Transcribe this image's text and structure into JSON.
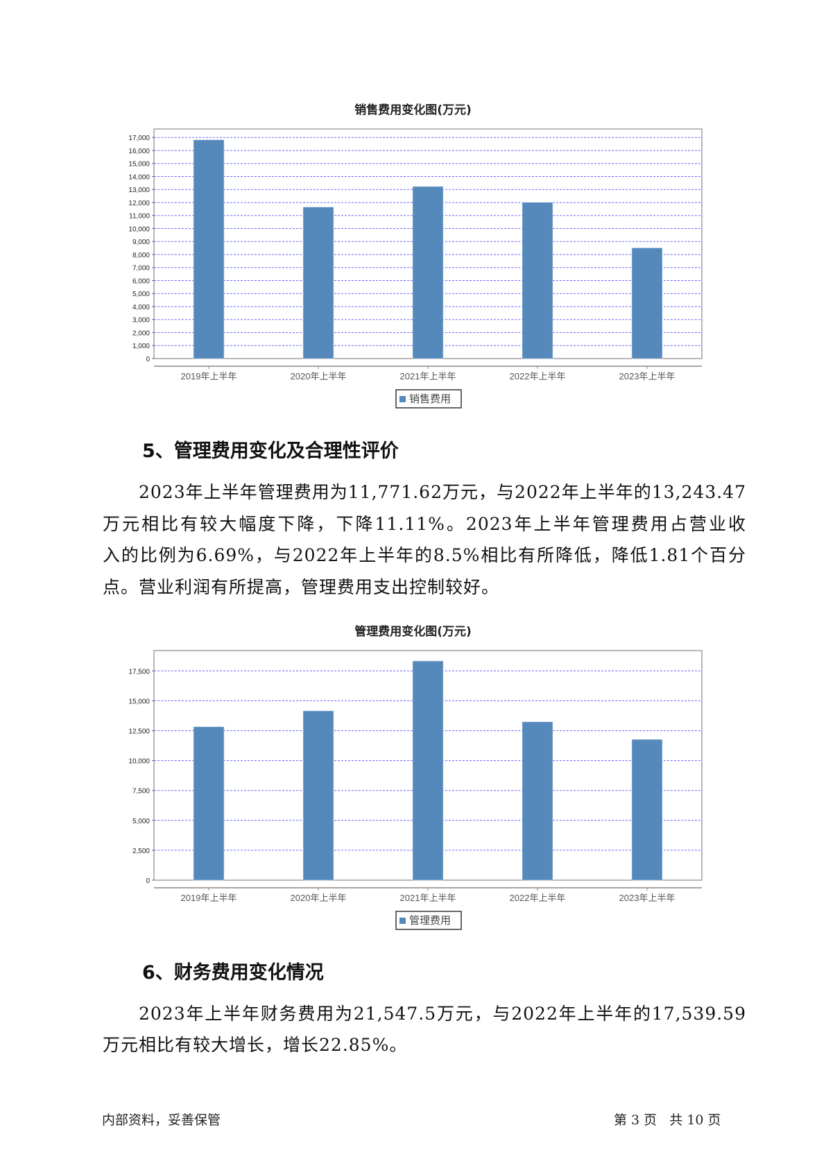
{
  "chart_data": [
    {
      "type": "bar",
      "title": "销售费用变化图(万元)",
      "categories": [
        "2019年上半年",
        "2020年上半年",
        "2021年上半年",
        "2022年上半年",
        "2023年上半年"
      ],
      "series": [
        {
          "name": "销售费用",
          "values": [
            16820,
            11650,
            13230,
            12010,
            8510
          ]
        }
      ],
      "ylim": [
        0,
        17650
      ],
      "yticks": [
        0,
        1000,
        2000,
        3000,
        4000,
        5000,
        6000,
        7000,
        8000,
        9000,
        10000,
        11000,
        12000,
        13000,
        14000,
        15000,
        16000,
        17000
      ],
      "ytick_labels": [
        "0",
        "1,000",
        "2,000",
        "3,000",
        "4,000",
        "5,000",
        "6,000",
        "7,000",
        "8,000",
        "9,000",
        "10,000",
        "11,000",
        "12,000",
        "13,000",
        "14,000",
        "15,000",
        "16,000",
        "17,000"
      ],
      "grid": true,
      "legend": "bottom",
      "bar_color": "#5588bb",
      "grid_color": "#6666ff"
    },
    {
      "type": "bar",
      "title": "管理费用变化图(万元)",
      "categories": [
        "2019年上半年",
        "2020年上半年",
        "2021年上半年",
        "2022年上半年",
        "2023年上半年"
      ],
      "series": [
        {
          "name": "管理费用",
          "values": [
            12830,
            14160,
            18330,
            13243.47,
            11771.62
          ]
        }
      ],
      "ylim": [
        0,
        19200
      ],
      "yticks": [
        0,
        2500,
        5000,
        7500,
        10000,
        12500,
        15000,
        17500
      ],
      "ytick_labels": [
        "0",
        "2,500",
        "5,000",
        "7,500",
        "10,000",
        "12,500",
        "15,000",
        "17,500"
      ],
      "grid": true,
      "legend": "bottom",
      "bar_color": "#5588bb",
      "grid_color": "#6666ff"
    }
  ],
  "section5": {
    "heading": "5、管理费用变化及合理性评价",
    "lines": [
      "2023年上半年管理费用为11,771.62万元，与2022年上半年的13,243.47",
      "万元相比有较大幅度下降，下降11.11%。2023年上半年管理费用占营业收",
      "入的比例为6.69%，与2022年上半年的8.5%相比有所降低，降低1.81个百分",
      "点。营业利润有所提高，管理费用支出控制较好。"
    ]
  },
  "section6": {
    "heading": "6、财务费用变化情况",
    "lines": [
      "2023年上半年财务费用为21,547.5万元，与2022年上半年的17,539.59",
      "万元相比有较大增长，增长22.85%。"
    ]
  },
  "footer": {
    "left": "内部资料，妥善保管",
    "right": "第 3 页   共 10 页"
  }
}
